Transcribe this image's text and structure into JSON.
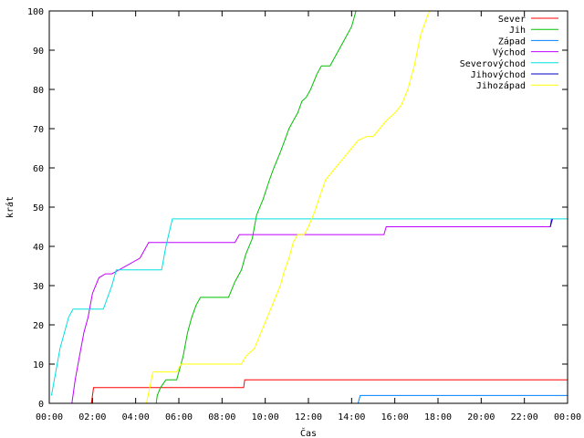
{
  "chart_data": {
    "type": "line",
    "xlabel": "Čas",
    "ylabel": "krát",
    "xlim": [
      0,
      24
    ],
    "ylim": [
      0,
      100
    ],
    "x_ticks": [
      "00:00",
      "02:00",
      "04:00",
      "06:00",
      "08:00",
      "10:00",
      "12:00",
      "14:00",
      "16:00",
      "18:00",
      "20:00",
      "22:00",
      "00:00"
    ],
    "y_ticks": [
      0,
      10,
      20,
      30,
      40,
      50,
      60,
      70,
      80,
      90,
      100
    ],
    "grid": false,
    "legend_position": "top-right",
    "series": [
      {
        "name": "Sever",
        "color": "#ff0000",
        "x": [
          1.95,
          2.05,
          9.0,
          9.05,
          24
        ],
        "y": [
          0,
          4,
          4,
          6,
          6
        ]
      },
      {
        "name": "Jih",
        "color": "#00c000",
        "x": [
          4.95,
          5.0,
          5.15,
          5.4,
          5.9,
          6.0,
          6.2,
          6.4,
          6.6,
          6.8,
          7.0,
          7.3,
          8.3,
          8.6,
          8.9,
          9.1,
          9.4,
          9.6,
          9.9,
          10.2,
          10.4,
          10.7,
          10.9,
          11.1,
          11.3,
          11.5,
          11.7,
          11.9,
          12.1,
          12.4,
          12.6,
          12.8,
          13.0,
          13.3,
          13.6,
          13.8,
          14.0,
          14.2,
          14.3
        ],
        "y": [
          0,
          2,
          4,
          6,
          6,
          8,
          12,
          18,
          22,
          25,
          27,
          27,
          27,
          31,
          34,
          38,
          42,
          48,
          52,
          57,
          60,
          64,
          67,
          70,
          72,
          74,
          77,
          78,
          80,
          84,
          86,
          86,
          86,
          89,
          92,
          94,
          96,
          100,
          100
        ]
      },
      {
        "name": "Západ",
        "color": "#0080ff",
        "x": [
          14.3,
          14.4,
          24
        ],
        "y": [
          0,
          2,
          2
        ]
      },
      {
        "name": "Východ",
        "color": "#c000ff",
        "x": [
          1.05,
          1.2,
          1.4,
          1.6,
          1.8,
          2.0,
          2.3,
          2.6,
          2.9,
          4.2,
          4.6,
          8.6,
          8.8,
          15.5,
          15.6,
          23.2,
          23.25
        ],
        "y": [
          0,
          6,
          12,
          18,
          22,
          28,
          32,
          33,
          33,
          37,
          41,
          41,
          43,
          43,
          45,
          45,
          47
        ]
      },
      {
        "name": "Severovýchod",
        "color": "#00e0e0",
        "x": [
          0.1,
          0.5,
          0.9,
          1.1,
          2.5,
          2.9,
          3.1,
          5.2,
          5.4,
          5.7,
          5.8,
          24
        ],
        "y": [
          2,
          14,
          22,
          24,
          24,
          30,
          34,
          34,
          40,
          47,
          47,
          47
        ]
      },
      {
        "name": "Jihovýchod",
        "color": "#0000c0",
        "x": [
          23.2,
          23.3
        ],
        "y": [
          45,
          47
        ]
      },
      {
        "name": "Jihozápad",
        "color": "#ffff00",
        "x": [
          4.5,
          4.65,
          4.8,
          5.4,
          5.9,
          6.1,
          8.9,
          9.1,
          9.5,
          9.8,
          10.1,
          10.4,
          10.7,
          10.9,
          11.1,
          11.3,
          11.5,
          11.8,
          12.0,
          12.3,
          12.6,
          12.8,
          13.1,
          13.4,
          13.7,
          14.0,
          14.3,
          14.7,
          15.0,
          15.3,
          15.6,
          16.0,
          16.3,
          16.6,
          16.9,
          17.2,
          17.6
        ],
        "y": [
          0,
          4,
          8,
          8,
          8,
          10,
          10,
          12,
          14,
          18,
          22,
          26,
          30,
          34,
          37,
          41,
          43,
          43,
          45,
          49,
          54,
          57,
          59,
          61,
          63,
          65,
          67,
          68,
          68,
          70,
          72,
          74,
          76,
          80,
          86,
          94,
          100
        ]
      }
    ]
  }
}
